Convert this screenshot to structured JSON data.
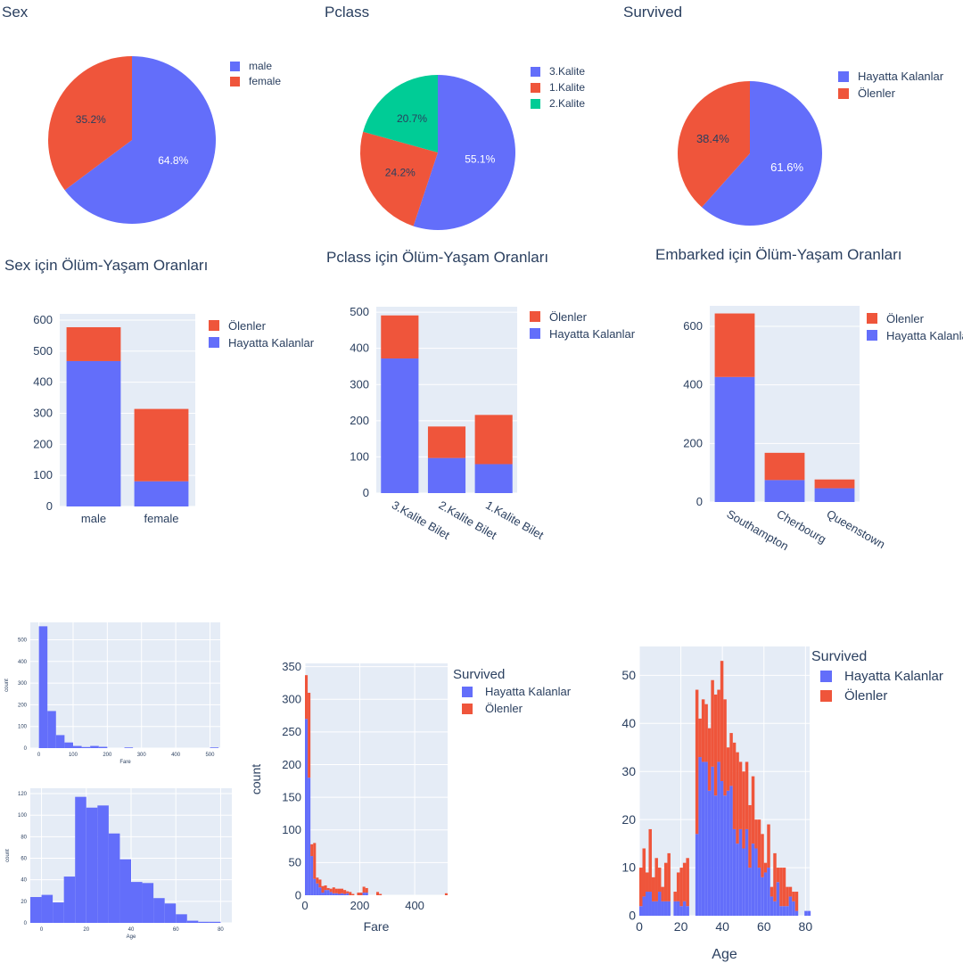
{
  "colors": {
    "blue": "#636efa",
    "red": "#ef553b",
    "green": "#00cc96",
    "plot_bg": "#e5ecf6",
    "text": "#2a3f5f"
  },
  "chart_data": [
    {
      "id": "sex_pie",
      "type": "pie",
      "title": "Sex",
      "labels": [
        "male",
        "female"
      ],
      "values": [
        64.8,
        35.2
      ],
      "slice_colors": [
        "#636efa",
        "#ef553b"
      ],
      "text": [
        "64.8%",
        "35.2%"
      ],
      "legend": [
        "male",
        "female"
      ],
      "legend_position": "right"
    },
    {
      "id": "pclass_pie",
      "type": "pie",
      "title": "Pclass",
      "labels": [
        "3.Kalite",
        "1.Kalite",
        "2.Kalite"
      ],
      "values": [
        55.1,
        24.2,
        20.7
      ],
      "slice_colors": [
        "#636efa",
        "#ef553b",
        "#00cc96"
      ],
      "text": [
        "55.1%",
        "24.2%",
        "20.7%"
      ],
      "legend": [
        "3.Kalite",
        "1.Kalite",
        "2.Kalite"
      ],
      "legend_position": "right"
    },
    {
      "id": "survived_pie",
      "type": "pie",
      "title": "Survived",
      "labels": [
        "Hayatta Kalanlar",
        "Ölenler"
      ],
      "values": [
        61.6,
        38.4
      ],
      "slice_colors": [
        "#636efa",
        "#ef553b"
      ],
      "text": [
        "61.6%",
        "38.4%"
      ],
      "legend": [
        "Hayatta Kalanlar",
        "Ölenler"
      ],
      "legend_position": "right"
    },
    {
      "id": "sex_bar",
      "type": "bar",
      "stacked": true,
      "title": "Sex için Ölüm-Yaşam Oranları",
      "categories": [
        "male",
        "female"
      ],
      "series": [
        {
          "name": "Hayatta Kalanlar",
          "color": "#636efa",
          "values": [
            468,
            81
          ]
        },
        {
          "name": "Ölenler",
          "color": "#ef553b",
          "values": [
            109,
            233
          ]
        }
      ],
      "ylim": [
        0,
        620
      ],
      "yticks": [
        0,
        100,
        200,
        300,
        400,
        500,
        600
      ],
      "tick_angle": 0,
      "legend": [
        "Ölenler",
        "Hayatta Kalanlar"
      ]
    },
    {
      "id": "pclass_bar",
      "type": "bar",
      "stacked": true,
      "title": "Pclass için Ölüm-Yaşam Oranları",
      "categories": [
        "3.Kalite Bilet",
        "2.Kalite Bilet",
        "1.Kalite Bilet"
      ],
      "series": [
        {
          "name": "Hayatta Kalanlar",
          "color": "#636efa",
          "values": [
            372,
            97,
            80
          ]
        },
        {
          "name": "Ölenler",
          "color": "#ef553b",
          "values": [
            119,
            87,
            136
          ]
        }
      ],
      "ylim": [
        0,
        515
      ],
      "yticks": [
        0,
        100,
        200,
        300,
        400,
        500
      ],
      "tick_angle": 30,
      "legend": [
        "Ölenler",
        "Hayatta Kalanlar"
      ]
    },
    {
      "id": "embarked_bar",
      "type": "bar",
      "stacked": true,
      "title": "Embarked için Ölüm-Yaşam Oranları",
      "categories": [
        "Southampton",
        "Cherbourg",
        "Queenstown"
      ],
      "series": [
        {
          "name": "Hayatta Kalanlar",
          "color": "#636efa",
          "values": [
            427,
            75,
            47
          ]
        },
        {
          "name": "Ölenler",
          "color": "#ef553b",
          "values": [
            217,
            93,
            30
          ]
        }
      ],
      "ylim": [
        0,
        670
      ],
      "yticks": [
        0,
        200,
        400,
        600
      ],
      "tick_angle": 30,
      "legend": [
        "Ölenler",
        "Hayatta Kalanlar"
      ]
    },
    {
      "id": "fare_hist_small",
      "type": "bar",
      "histogram": true,
      "xlabel": "Fare",
      "ylabel": "count",
      "bin_edges": [
        -25,
        0,
        25,
        50,
        75,
        100,
        125,
        150,
        175,
        200,
        225,
        250,
        275,
        300,
        325,
        350,
        375,
        400,
        425,
        450,
        475,
        500,
        525
      ],
      "series": [
        {
          "color": "#636efa",
          "values": [
            0,
            562,
            171,
            60,
            26,
            10,
            5,
            10,
            6,
            0,
            0,
            3,
            0,
            0,
            0,
            0,
            0,
            0,
            0,
            0,
            0,
            3
          ]
        }
      ],
      "xlim": [
        -25,
        530
      ],
      "ylim": [
        0,
        580
      ],
      "xticks": [
        0,
        100,
        200,
        300,
        400,
        500
      ],
      "yticks": [
        0,
        100,
        200,
        300,
        400,
        500
      ]
    },
    {
      "id": "age_hist_small",
      "type": "bar",
      "histogram": true,
      "xlabel": "Age",
      "ylabel": "count",
      "bin_edges": [
        -5,
        0,
        5,
        10,
        15,
        20,
        25,
        30,
        35,
        40,
        45,
        50,
        55,
        60,
        65,
        70,
        75,
        80,
        85
      ],
      "series": [
        {
          "color": "#636efa",
          "values": [
            24,
            26,
            19,
            43,
            117,
            107,
            109,
            83,
            59,
            38,
            37,
            23,
            18,
            8,
            2,
            1,
            1,
            0
          ]
        }
      ],
      "xlim": [
        -5,
        85
      ],
      "ylim": [
        0,
        125
      ],
      "xticks": [
        0,
        20,
        40,
        60,
        80
      ],
      "yticks": [
        0,
        20,
        40,
        60,
        80,
        100,
        120
      ]
    },
    {
      "id": "fare_hist",
      "type": "bar",
      "histogram": true,
      "stacked": true,
      "xlabel": "Fare",
      "ylabel": "count",
      "legend_title": "Survived",
      "bin_edges": [
        0,
        10,
        20,
        30,
        40,
        50,
        60,
        70,
        80,
        90,
        100,
        110,
        120,
        130,
        140,
        150,
        160,
        170,
        180,
        190,
        200,
        210,
        220,
        230,
        240,
        250,
        260,
        270,
        280,
        290,
        300,
        310,
        320,
        330,
        340,
        350,
        360,
        370,
        380,
        390,
        400,
        410,
        420,
        430,
        440,
        450,
        460,
        470,
        480,
        490,
        500,
        510,
        520
      ],
      "series": [
        {
          "name": "Hayatta Kalanlar",
          "color": "#636efa",
          "values": [
            270,
            180,
            60,
            25,
            18,
            12,
            4,
            8,
            8,
            5,
            3,
            3,
            2,
            3,
            2,
            3,
            0,
            0,
            0,
            0,
            0,
            4,
            4,
            0,
            0,
            0,
            0,
            0,
            0,
            0,
            0,
            0,
            0,
            0,
            0,
            0,
            0,
            0,
            0,
            0,
            0,
            0,
            0,
            0,
            0,
            0,
            0,
            0,
            0,
            0,
            0,
            0
          ]
        },
        {
          "name": "Ölenler",
          "color": "#ef553b",
          "values": [
            67,
            130,
            18,
            55,
            9,
            12,
            10,
            7,
            3,
            5,
            9,
            7,
            8,
            7,
            6,
            3,
            5,
            2,
            0,
            4,
            4,
            9,
            7,
            0,
            0,
            0,
            5,
            2,
            0,
            0,
            0,
            0,
            0,
            0,
            0,
            0,
            0,
            0,
            0,
            0,
            0,
            0,
            0,
            0,
            0,
            0,
            0,
            0,
            0,
            0,
            0,
            3
          ]
        }
      ],
      "xlim": [
        0,
        520
      ],
      "ylim": [
        0,
        355
      ],
      "xticks": [
        0,
        200,
        400
      ],
      "yticks": [
        0,
        50,
        100,
        150,
        200,
        250,
        300,
        350
      ],
      "legend": [
        "Hayatta Kalanlar",
        "Ölenler"
      ]
    },
    {
      "id": "age_hist",
      "type": "bar",
      "histogram": true,
      "stacked": true,
      "xlabel": "Age",
      "ylabel": "",
      "legend_title": "Survived",
      "bin_start": 0,
      "bin_width": 1.5,
      "series": [
        {
          "name": "Hayatta Kalanlar",
          "color": "#636efa",
          "values": [
            2,
            4,
            5,
            5,
            3,
            3,
            5,
            3,
            3,
            3,
            0,
            3,
            3,
            2,
            3,
            2,
            0,
            0,
            17,
            33,
            32,
            32,
            26,
            31,
            25,
            32,
            28,
            25,
            26,
            27,
            18,
            15,
            18,
            14,
            18,
            10,
            15,
            14,
            10,
            8,
            9,
            10,
            4,
            3,
            7,
            2,
            2,
            2,
            4,
            3,
            1,
            0,
            0,
            1,
            1,
            0,
            0
          ]
        },
        {
          "name": "Ölenler",
          "color": "#ef553b",
          "values": [
            8,
            10,
            4,
            13,
            5,
            9,
            5,
            3,
            8,
            10,
            0,
            2,
            6,
            8,
            8,
            10,
            0,
            0,
            30,
            8,
            13,
            12,
            13,
            18,
            21,
            15,
            25,
            20,
            9,
            11,
            18,
            19,
            14,
            16,
            14,
            13,
            14,
            6,
            10,
            9,
            2,
            9,
            2,
            10,
            3,
            8,
            8,
            4,
            2,
            2,
            4,
            0,
            0,
            0,
            0,
            0,
            0
          ]
        }
      ],
      "xlim": [
        0,
        82
      ],
      "ylim": [
        0,
        56
      ],
      "xticks": [
        0,
        20,
        40,
        60,
        80
      ],
      "yticks": [
        0,
        10,
        20,
        30,
        40,
        50
      ],
      "legend": [
        "Hayatta Kalanlar",
        "Ölenler"
      ]
    }
  ]
}
